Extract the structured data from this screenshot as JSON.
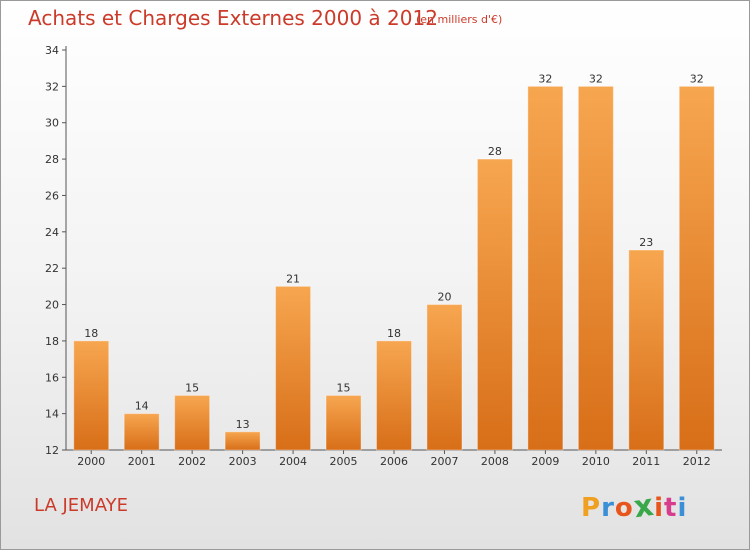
{
  "header": {
    "title": "Achats et Charges Externes 2000 à 2012",
    "subtitle": "(en milliers d'€)"
  },
  "footer": {
    "commune": "LA JEMAYE",
    "logo_letters": [
      "P",
      "r",
      "o",
      "x",
      "i",
      "t",
      "i"
    ],
    "logo_colors": [
      "#f0a020",
      "#3a8fd6",
      "#e8551c",
      "#3aa84a",
      "#e8551c",
      "#d83c8c",
      "#3a8fd6"
    ]
  },
  "colors": {
    "bar_light": "#f7a650",
    "bar_dark": "#d86e18",
    "title": "#cc3a2a"
  },
  "chart_data": {
    "type": "bar",
    "title": "Achats et Charges Externes 2000 à 2012",
    "subtitle": "(en milliers d'€)",
    "categories": [
      "2000",
      "2001",
      "2002",
      "2003",
      "2004",
      "2005",
      "2006",
      "2007",
      "2008",
      "2009",
      "2010",
      "2011",
      "2012"
    ],
    "values": [
      18,
      14,
      15,
      13,
      21,
      15,
      18,
      20,
      28,
      32,
      32,
      23,
      32
    ],
    "ylim": [
      12,
      34
    ],
    "yticks": [
      12,
      14,
      16,
      18,
      20,
      22,
      24,
      26,
      28,
      30,
      32,
      34
    ],
    "grid": false,
    "legend": "none"
  }
}
